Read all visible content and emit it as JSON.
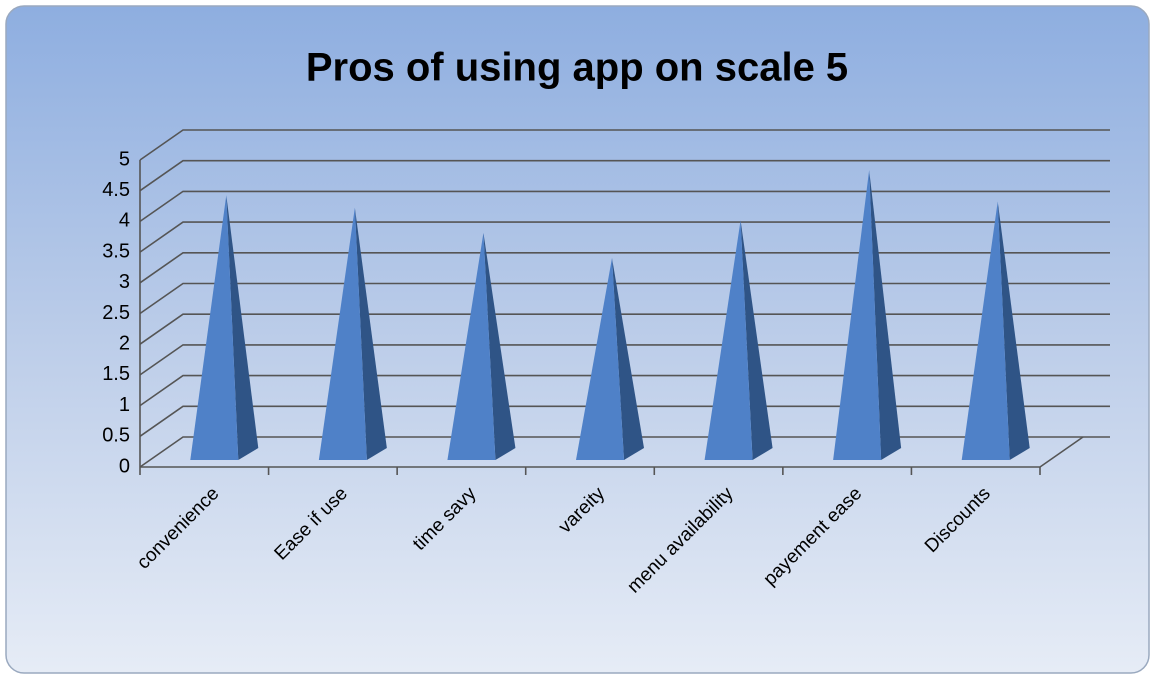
{
  "chart_data": {
    "type": "pyramid3d",
    "title": "Pros of using app on scale 5",
    "categories": [
      "convenience",
      "Ease if use",
      "time savy",
      "vareity",
      "menu availability",
      "payement ease",
      "Discounts"
    ],
    "values": [
      4.2,
      4.0,
      3.6,
      3.2,
      3.8,
      4.6,
      4.1
    ],
    "color": "#4f81c8",
    "ylim": [
      0,
      5
    ],
    "yticks": [
      0,
      0.5,
      1,
      1.5,
      2,
      2.5,
      3,
      3.5,
      4,
      4.5,
      5
    ],
    "grid": true
  }
}
